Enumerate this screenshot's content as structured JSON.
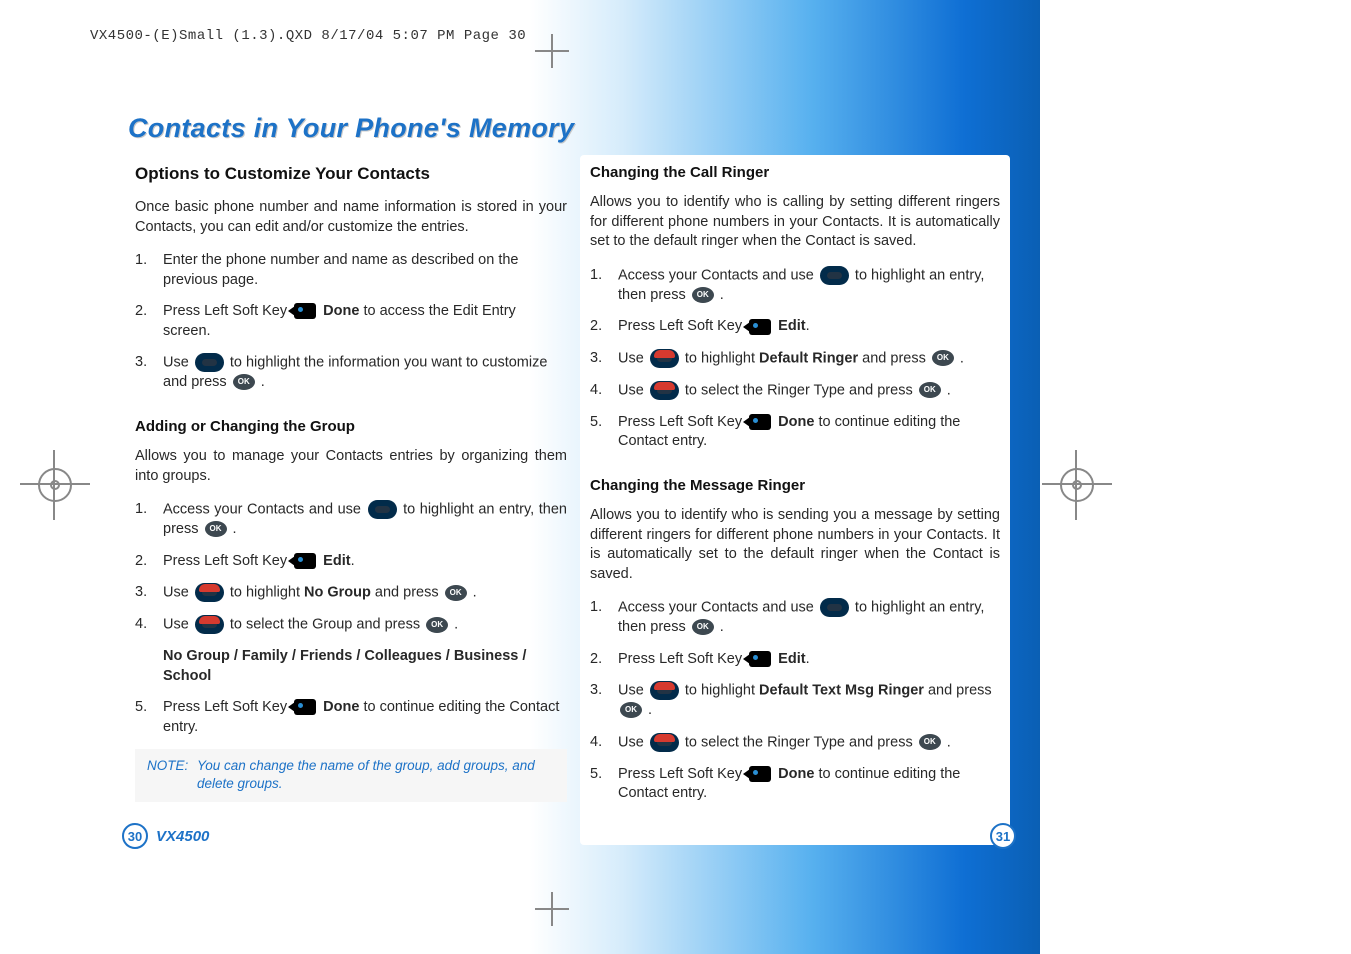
{
  "meta_header": "VX4500-(E)Small (1.3).QXD  8/17/04  5:07 PM  Page 30",
  "main_title": "Contacts in Your Phone's Memory",
  "left": {
    "heading": "Options to Customize Your Contacts",
    "intro": "Once basic phone number and name information is stored in your Contacts, you can edit and/or customize the entries.",
    "steps_a": {
      "s1": "Enter the phone number and name as described on the previous page.",
      "s2a": "Press Left Soft Key ",
      "s2b": " Done",
      "s2c": " to access the Edit Entry screen.",
      "s3a": "Use ",
      "s3b": " to highlight the information you want to customize and press ",
      "s3c": " ."
    },
    "sub1": "Adding or Changing the Group",
    "sub1_intro": "Allows you to manage your Contacts entries by organizing them into groups.",
    "steps_b": {
      "s1a": "Access your Contacts and use ",
      "s1b": " to highlight an entry, then press ",
      "s1c": " .",
      "s2a": "Press Left Soft Key ",
      "s2b": " Edit",
      "s2c": ".",
      "s3a": "Use ",
      "s3b": " to highlight ",
      "s3c": "No Group",
      "s3d": " and press ",
      "s3e": " .",
      "s4a": "Use ",
      "s4b": " to select the Group and press ",
      "s4c": " .",
      "groups": "No Group / Family / Friends / Colleagues / Business / School",
      "s5a": "Press Left Soft Key ",
      "s5b": " Done",
      "s5c": " to continue editing the Contact entry."
    },
    "note_label": "NOTE:",
    "note_text": "You can change the name of the group, add groups, and delete groups."
  },
  "right": {
    "sub1": "Changing the Call Ringer",
    "sub1_intro": "Allows you to identify who is calling by setting different ringers for different phone numbers in your Contacts. It is automatically set to the default ringer when the Contact is saved.",
    "steps_a": {
      "s1a": "Access your Contacts and use ",
      "s1b": " to highlight an entry, then press ",
      "s1c": " .",
      "s2a": "Press Left Soft Key ",
      "s2b": " Edit",
      "s2c": ".",
      "s3a": "Use ",
      "s3b": " to highlight ",
      "s3c": "Default Ringer",
      "s3d": " and press ",
      "s3e": " .",
      "s4a": "Use ",
      "s4b": " to select the Ringer Type and press ",
      "s4c": " .",
      "s5a": "Press Left Soft Key ",
      "s5b": " Done",
      "s5c": " to continue editing the Contact entry."
    },
    "sub2": "Changing the Message Ringer",
    "sub2_intro": "Allows you to identify who is sending you a message by setting different ringers for different phone numbers in your Contacts. It is automatically set to the default ringer when the Contact is saved.",
    "steps_b": {
      "s1a": "Access your Contacts and use ",
      "s1b": " to highlight an entry, then press ",
      "s1c": " .",
      "s2a": "Press Left Soft Key ",
      "s2b": " Edit",
      "s2c": ".",
      "s3a": "Use ",
      "s3b": " to highlight ",
      "s3c": "Default Text Msg Ringer",
      "s3d": " and press ",
      "s3e": " .",
      "s4a": "Use ",
      "s4b": " to select the Ringer Type and press ",
      "s4c": " .",
      "s5a": "Press Left Soft Key ",
      "s5b": " Done",
      "s5c": " to continue editing the Contact entry."
    }
  },
  "footer": {
    "model": "VX4500",
    "page_left": "30",
    "page_right": "31"
  },
  "colors": {
    "title": "#1d72c7",
    "gradient_start": "#ffffff",
    "gradient_end": "#0a5fb4"
  }
}
